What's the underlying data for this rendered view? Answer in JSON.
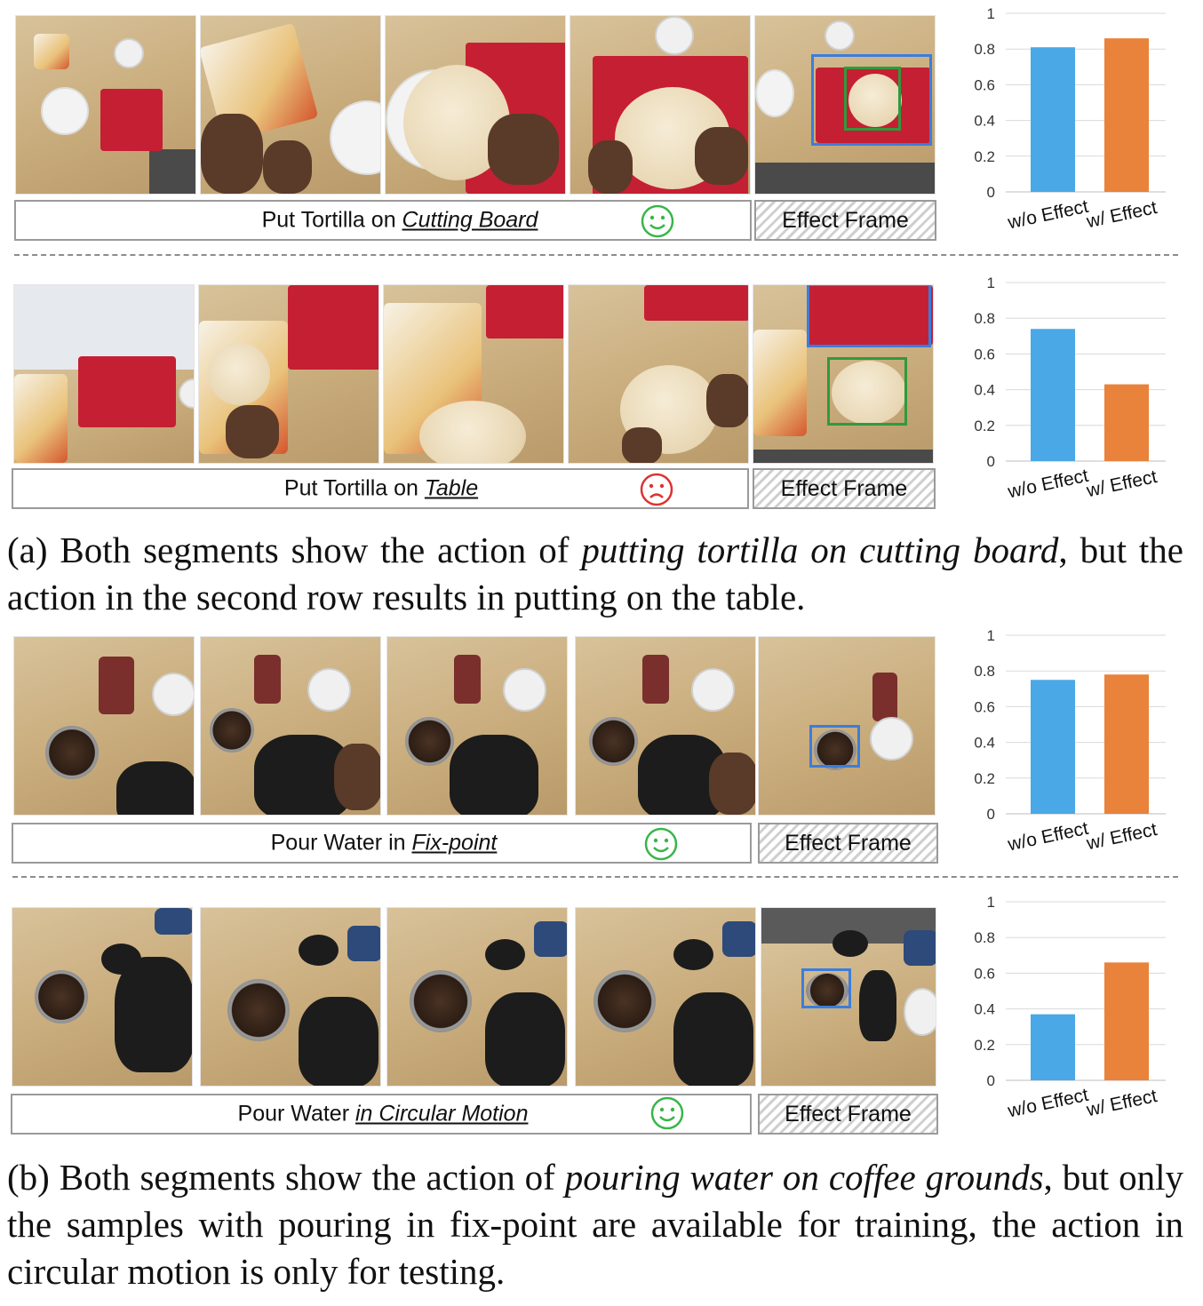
{
  "rows": [
    {
      "caption_prefix": "Put Tortilla on ",
      "caption_emph": "Cutting Board",
      "face": "smile-face",
      "face_color": "#39b54a",
      "effect_label": "Effect Frame"
    },
    {
      "caption_prefix": "Put Tortilla on ",
      "caption_emph": "Table",
      "face": "frown-face",
      "face_color": "#e03131",
      "effect_label": "Effect Frame"
    },
    {
      "caption_prefix": "Pour Water in ",
      "caption_emph": "Fix-point",
      "face": "smile-face",
      "face_color": "#39b54a",
      "effect_label": "Effect Frame"
    },
    {
      "caption_prefix": "Pour Water ",
      "caption_emph": "in Circular Motion",
      "face": "smile-face",
      "face_color": "#39b54a",
      "effect_label": "Effect Frame"
    }
  ],
  "paragraphs": {
    "a": {
      "pre": "(a) Both segments show the action of ",
      "emph": "putting tortilla on cutting board",
      "post": ", but the action in the second row results in putting on the table."
    },
    "b": {
      "pre": "(b) Both segments show the action of ",
      "emph": "pouring water on coffee grounds",
      "post": ", but only the samples with pouring in fix-point are available for training, the action in circular motion is only for testing."
    }
  },
  "chart_data": [
    {
      "type": "bar",
      "categories": [
        "w/o Effect",
        "w/ Effect"
      ],
      "values": [
        0.81,
        0.86
      ],
      "colors": [
        "#4aa8e6",
        "#e9823a"
      ],
      "ylim": [
        0,
        1
      ],
      "yticks": [
        "0",
        "0.2",
        "0.4",
        "0.6",
        "0.8",
        "1"
      ],
      "grid": true
    },
    {
      "type": "bar",
      "categories": [
        "w/o Effect",
        "w/ Effect"
      ],
      "values": [
        0.74,
        0.43
      ],
      "colors": [
        "#4aa8e6",
        "#e9823a"
      ],
      "ylim": [
        0,
        1
      ],
      "yticks": [
        "0",
        "0.2",
        "0.4",
        "0.6",
        "0.8",
        "1"
      ],
      "grid": true
    },
    {
      "type": "bar",
      "categories": [
        "w/o Effect",
        "w/ Effect"
      ],
      "values": [
        0.75,
        0.78
      ],
      "colors": [
        "#4aa8e6",
        "#e9823a"
      ],
      "ylim": [
        0,
        1
      ],
      "yticks": [
        "0",
        "0.2",
        "0.4",
        "0.6",
        "0.8",
        "1"
      ],
      "grid": true
    },
    {
      "type": "bar",
      "categories": [
        "w/o Effect",
        "w/ Effect"
      ],
      "values": [
        0.37,
        0.66
      ],
      "colors": [
        "#4aa8e6",
        "#e9823a"
      ],
      "ylim": [
        0,
        1
      ],
      "yticks": [
        "0",
        "0.2",
        "0.4",
        "0.6",
        "0.8",
        "1"
      ],
      "grid": true
    }
  ]
}
